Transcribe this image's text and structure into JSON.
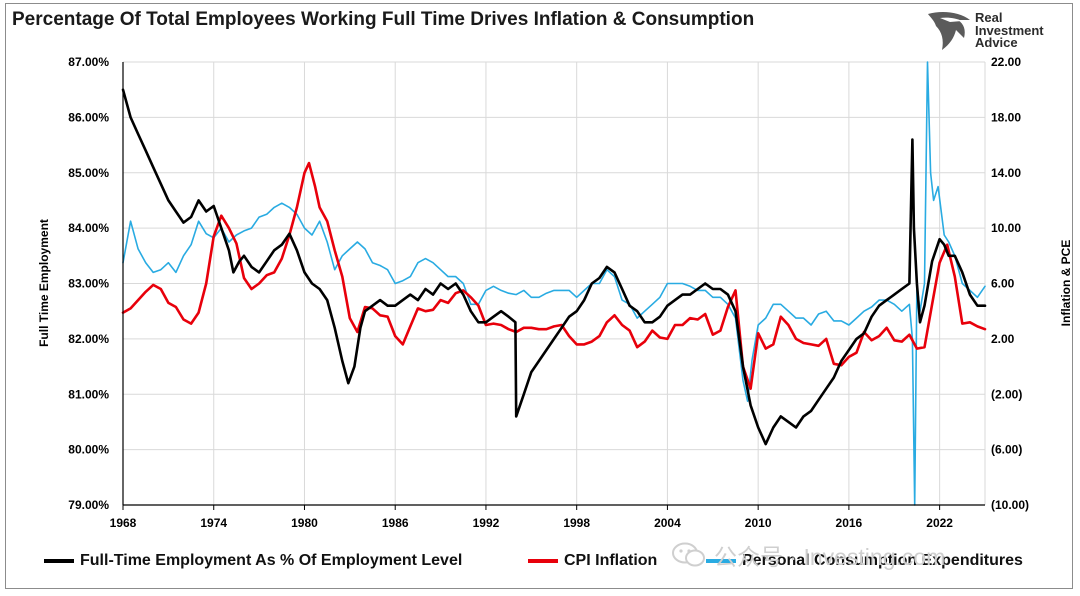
{
  "colors": {
    "employment": "#000000",
    "cpi": "#e8000b",
    "pce": "#29abe2",
    "grid": "#d9d9d9",
    "axis": "#000000",
    "logo": "#5b5b5b"
  },
  "logo": {
    "line1": "Real",
    "line2": "Investment",
    "line3": "Advice",
    "icon": "eagle-head-icon"
  },
  "watermark": {
    "icon": "wechat-icon",
    "text": "公众号 · Investing.com"
  },
  "chart_data": {
    "type": "line",
    "title": "Percentage Of Total Employees Working Full Time Drives Inflation & Consumption",
    "ylabel": "Full Time Employment",
    "y2label": "Inflation & PCE",
    "xlim": [
      1968,
      2025
    ],
    "ylim": [
      79,
      87
    ],
    "y2lim": [
      -10,
      22
    ],
    "x_ticks": [
      "1968",
      "1974",
      "1980",
      "1986",
      "1992",
      "1998",
      "2004",
      "2010",
      "2016",
      "2022"
    ],
    "x_tick_values": [
      1968,
      1974,
      1980,
      1986,
      1992,
      1998,
      2004,
      2010,
      2016,
      2022
    ],
    "y_ticks": [
      "79.00%",
      "80.00%",
      "81.00%",
      "82.00%",
      "83.00%",
      "84.00%",
      "85.00%",
      "86.00%",
      "87.00%"
    ],
    "y_tick_values": [
      79,
      80,
      81,
      82,
      83,
      84,
      85,
      86,
      87
    ],
    "y2_ticks": [
      "(10.00)",
      "(6.00)",
      "(2.00)",
      "2.00",
      "6.00",
      "10.00",
      "14.00",
      "18.00",
      "22.00"
    ],
    "y2_tick_values": [
      -10,
      -6,
      -2,
      2,
      6,
      10,
      14,
      18,
      22
    ],
    "grid": true,
    "legend_position": "bottom",
    "series": [
      {
        "name": "Full-Time Employment As % Of Employment Level",
        "axis": "left",
        "x": [
          1968.0,
          1968.5,
          1969.0,
          1969.5,
          1970.0,
          1970.5,
          1971.0,
          1971.5,
          1972.0,
          1972.5,
          1973.0,
          1973.5,
          1974.0,
          1974.5,
          1975.0,
          1975.3,
          1975.7,
          1976.0,
          1976.5,
          1977.0,
          1977.5,
          1978.0,
          1978.5,
          1979.0,
          1979.5,
          1980.0,
          1980.5,
          1981.0,
          1981.5,
          1982.0,
          1982.5,
          1982.9,
          1983.3,
          1983.7,
          1984.0,
          1984.5,
          1985.0,
          1985.5,
          1986.0,
          1986.5,
          1987.0,
          1987.5,
          1988.0,
          1988.5,
          1989.0,
          1989.5,
          1990.0,
          1990.5,
          1991.0,
          1991.5,
          1992.0,
          1992.5,
          1993.0,
          1993.5,
          1993.95,
          1994.0,
          1994.5,
          1995.0,
          1995.5,
          1996.0,
          1996.5,
          1997.0,
          1997.5,
          1998.0,
          1998.5,
          1999.0,
          1999.5,
          2000.0,
          2000.5,
          2001.0,
          2001.5,
          2002.0,
          2002.5,
          2003.0,
          2003.5,
          2004.0,
          2004.5,
          2005.0,
          2005.5,
          2006.0,
          2006.5,
          2007.0,
          2007.5,
          2008.0,
          2008.5,
          2009.0,
          2009.5,
          2010.0,
          2010.5,
          2011.0,
          2011.5,
          2012.0,
          2012.5,
          2013.0,
          2013.5,
          2014.0,
          2014.5,
          2015.0,
          2015.5,
          2016.0,
          2016.5,
          2017.0,
          2017.5,
          2018.0,
          2018.5,
          2019.0,
          2019.5,
          2020.0,
          2020.2,
          2020.3,
          2020.5,
          2020.7,
          2021.0,
          2021.5,
          2022.0,
          2022.3,
          2022.6,
          2023.0,
          2023.5,
          2024.0,
          2024.5,
          2025.0
        ],
        "y": [
          86.5,
          86.0,
          85.7,
          85.4,
          85.1,
          84.8,
          84.5,
          84.3,
          84.1,
          84.2,
          84.5,
          84.3,
          84.4,
          84.0,
          83.6,
          83.2,
          83.4,
          83.5,
          83.3,
          83.2,
          83.4,
          83.6,
          83.7,
          83.9,
          83.6,
          83.2,
          83.0,
          82.9,
          82.7,
          82.2,
          81.6,
          81.2,
          81.5,
          82.2,
          82.5,
          82.6,
          82.7,
          82.6,
          82.6,
          82.7,
          82.8,
          82.7,
          82.9,
          82.8,
          83.0,
          82.9,
          83.0,
          82.8,
          82.5,
          82.3,
          82.3,
          82.4,
          82.5,
          82.4,
          82.3,
          80.6,
          81.0,
          81.4,
          81.6,
          81.8,
          82.0,
          82.2,
          82.4,
          82.5,
          82.7,
          83.0,
          83.1,
          83.3,
          83.2,
          82.9,
          82.6,
          82.5,
          82.3,
          82.3,
          82.4,
          82.6,
          82.7,
          82.8,
          82.8,
          82.9,
          83.0,
          82.9,
          82.9,
          82.8,
          82.5,
          81.5,
          80.8,
          80.4,
          80.1,
          80.4,
          80.6,
          80.5,
          80.4,
          80.6,
          80.7,
          80.9,
          81.1,
          81.3,
          81.6,
          81.8,
          82.0,
          82.1,
          82.4,
          82.6,
          82.7,
          82.8,
          82.9,
          83.0,
          85.6,
          84.0,
          83.0,
          82.3,
          82.6,
          83.4,
          83.8,
          83.7,
          83.5,
          83.5,
          83.2,
          82.8,
          82.6,
          82.6
        ],
        "color": "#000000"
      },
      {
        "name": "CPI Inflation",
        "axis": "right",
        "x": [
          1968.0,
          1968.5,
          1969.0,
          1969.5,
          1970.0,
          1970.5,
          1971.0,
          1971.5,
          1972.0,
          1972.5,
          1973.0,
          1973.5,
          1974.0,
          1974.5,
          1975.0,
          1975.5,
          1976.0,
          1976.5,
          1977.0,
          1977.5,
          1978.0,
          1978.5,
          1979.0,
          1979.5,
          1980.0,
          1980.3,
          1980.7,
          1981.0,
          1981.5,
          1982.0,
          1982.5,
          1983.0,
          1983.5,
          1984.0,
          1984.5,
          1985.0,
          1985.5,
          1986.0,
          1986.5,
          1987.0,
          1987.5,
          1988.0,
          1988.5,
          1989.0,
          1989.5,
          1990.0,
          1990.5,
          1991.0,
          1991.5,
          1992.0,
          1992.5,
          1993.0,
          1993.5,
          1994.0,
          1994.5,
          1995.0,
          1995.5,
          1996.0,
          1996.5,
          1997.0,
          1997.5,
          1998.0,
          1998.5,
          1999.0,
          1999.5,
          2000.0,
          2000.5,
          2001.0,
          2001.5,
          2002.0,
          2002.5,
          2003.0,
          2003.5,
          2004.0,
          2004.5,
          2005.0,
          2005.5,
          2006.0,
          2006.5,
          2007.0,
          2007.5,
          2008.0,
          2008.5,
          2009.0,
          2009.5,
          2010.0,
          2010.5,
          2011.0,
          2011.5,
          2012.0,
          2012.5,
          2013.0,
          2013.5,
          2014.0,
          2014.5,
          2015.0,
          2015.5,
          2016.0,
          2016.5,
          2017.0,
          2017.5,
          2018.0,
          2018.5,
          2019.0,
          2019.5,
          2020.0,
          2020.5,
          2021.0,
          2021.5,
          2022.0,
          2022.5,
          2023.0,
          2023.5,
          2024.0,
          2024.5,
          2025.0
        ],
        "y": [
          3.9,
          4.2,
          4.8,
          5.4,
          5.9,
          5.6,
          4.6,
          4.3,
          3.4,
          3.1,
          3.9,
          6.0,
          9.4,
          10.9,
          10.0,
          8.9,
          6.4,
          5.6,
          6.0,
          6.6,
          6.8,
          7.8,
          9.5,
          11.5,
          14.0,
          14.7,
          13.0,
          11.5,
          10.5,
          8.4,
          6.5,
          3.5,
          2.5,
          4.3,
          4.2,
          3.7,
          3.6,
          2.2,
          1.6,
          2.9,
          4.2,
          4.0,
          4.1,
          4.8,
          4.6,
          5.3,
          5.5,
          5.0,
          4.4,
          3.0,
          3.1,
          3.0,
          2.7,
          2.5,
          2.8,
          2.8,
          2.7,
          2.7,
          2.9,
          3.0,
          2.2,
          1.6,
          1.6,
          1.8,
          2.2,
          3.2,
          3.7,
          3.0,
          2.6,
          1.4,
          1.8,
          2.6,
          2.1,
          2.0,
          3.0,
          3.0,
          3.5,
          3.4,
          3.8,
          2.3,
          2.6,
          4.3,
          5.5,
          0.0,
          -1.6,
          2.4,
          1.3,
          1.6,
          3.6,
          3.0,
          2.0,
          1.7,
          1.6,
          1.5,
          2.0,
          0.2,
          0.1,
          0.7,
          1.0,
          2.5,
          1.9,
          2.2,
          2.8,
          1.9,
          1.8,
          2.3,
          1.3,
          1.4,
          4.5,
          7.5,
          8.8,
          6.5,
          3.1,
          3.2,
          2.9,
          2.7
        ],
        "color": "#e8000b"
      },
      {
        "name": "Personal Consumption Expenditures",
        "axis": "right",
        "x": [
          1968.0,
          1968.5,
          1969.0,
          1969.5,
          1970.0,
          1970.5,
          1971.0,
          1971.5,
          1972.0,
          1972.5,
          1973.0,
          1973.5,
          1974.0,
          1974.5,
          1975.0,
          1975.5,
          1976.0,
          1976.5,
          1977.0,
          1977.5,
          1978.0,
          1978.5,
          1979.0,
          1979.5,
          1980.0,
          1980.5,
          1981.0,
          1981.5,
          1982.0,
          1982.5,
          1983.0,
          1983.5,
          1984.0,
          1984.5,
          1985.0,
          1985.5,
          1986.0,
          1986.5,
          1987.0,
          1987.5,
          1988.0,
          1988.5,
          1989.0,
          1989.5,
          1990.0,
          1990.5,
          1991.0,
          1991.5,
          1992.0,
          1992.5,
          1993.0,
          1993.5,
          1994.0,
          1994.5,
          1995.0,
          1995.5,
          1996.0,
          1996.5,
          1997.0,
          1997.5,
          1998.0,
          1998.5,
          1999.0,
          1999.5,
          2000.0,
          2000.5,
          2001.0,
          2001.5,
          2002.0,
          2002.5,
          2003.0,
          2003.5,
          2004.0,
          2004.5,
          2005.0,
          2005.5,
          2006.0,
          2006.5,
          2007.0,
          2007.5,
          2008.0,
          2008.5,
          2009.0,
          2009.3,
          2009.6,
          2010.0,
          2010.5,
          2011.0,
          2011.5,
          2012.0,
          2012.5,
          2013.0,
          2013.5,
          2014.0,
          2014.5,
          2015.0,
          2015.5,
          2016.0,
          2016.5,
          2017.0,
          2017.5,
          2018.0,
          2018.5,
          2019.0,
          2019.5,
          2020.0,
          2020.2,
          2020.35,
          2020.5,
          2020.7,
          2021.0,
          2021.2,
          2021.4,
          2021.6,
          2021.9,
          2022.3,
          2022.6,
          2023.0,
          2023.5,
          2024.0,
          2024.5,
          2025.0
        ],
        "y": [
          7.5,
          10.5,
          8.5,
          7.5,
          6.8,
          7.0,
          7.5,
          6.8,
          8.0,
          8.8,
          10.5,
          9.6,
          9.3,
          10.0,
          9.0,
          9.5,
          9.8,
          10.0,
          10.8,
          11.0,
          11.5,
          11.8,
          11.5,
          11.0,
          10.0,
          9.5,
          10.5,
          9.0,
          7.0,
          8.0,
          8.5,
          9.0,
          8.5,
          7.5,
          7.3,
          7.0,
          6.0,
          6.2,
          6.5,
          7.5,
          7.8,
          7.5,
          7.0,
          6.5,
          6.5,
          6.0,
          4.5,
          4.5,
          5.5,
          5.8,
          5.5,
          5.3,
          5.2,
          5.5,
          5.0,
          5.0,
          5.3,
          5.5,
          5.5,
          5.5,
          5.0,
          5.5,
          6.0,
          6.0,
          7.0,
          6.5,
          4.8,
          4.5,
          3.5,
          4.0,
          4.5,
          5.0,
          6.0,
          6.0,
          6.0,
          5.8,
          5.5,
          5.5,
          5.0,
          5.0,
          4.5,
          3.5,
          -1.0,
          -2.5,
          0.5,
          3.0,
          3.5,
          4.5,
          4.5,
          4.0,
          3.5,
          3.5,
          3.0,
          3.8,
          4.0,
          3.3,
          3.3,
          3.0,
          3.5,
          4.0,
          4.3,
          4.8,
          4.8,
          4.5,
          4.0,
          4.5,
          2.0,
          -10.0,
          6.0,
          4.0,
          6.0,
          22.0,
          14.0,
          12.0,
          13.0,
          9.5,
          9.0,
          8.0,
          6.0,
          5.5,
          5.0,
          5.8
        ],
        "color": "#29abe2"
      }
    ]
  }
}
